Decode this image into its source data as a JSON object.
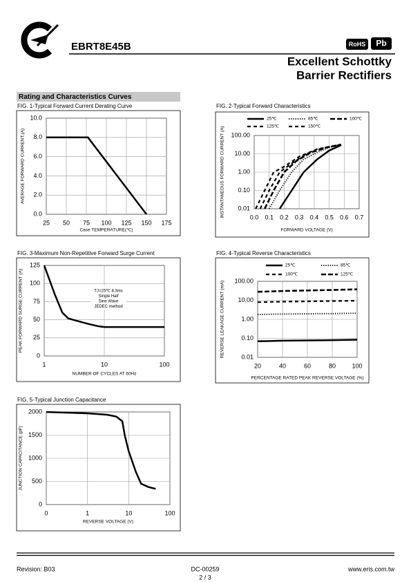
{
  "header": {
    "part_number": "EBRT8E45B",
    "rohs": "RoHS",
    "pb": "Pb",
    "title_line1": "Excellent Schottky",
    "title_line2": "Barrier Rectifiers",
    "section": "Rating and Characteristics Curves"
  },
  "chart_data": [
    {
      "type": "line",
      "title": "FIG. 1-Typical Forward Current Derating Curve",
      "x_label": "Case TEMPERATURE(℃)",
      "y_label": "AVERAGE FORWARD CURRENT,(A)",
      "x": [
        25,
        77,
        150
      ],
      "series": [
        {
          "color": "#000000",
          "style": "solid",
          "values": [
            8,
            8,
            0
          ]
        }
      ],
      "xlim": [
        25,
        175
      ],
      "xticks": [
        25,
        50,
        75,
        100,
        125,
        150,
        175
      ],
      "ylim": [
        0,
        10
      ],
      "yticks": [
        {
          "value": 0,
          "label": "0.0"
        },
        {
          "value": 2,
          "label": "2.0"
        },
        {
          "value": 4,
          "label": "4.0"
        },
        {
          "value": 6,
          "label": "6.0"
        },
        {
          "value": 8,
          "label": "8.0"
        },
        {
          "value": 10,
          "label": "10.0"
        }
      ],
      "grid": true
    },
    {
      "type": "line",
      "title": "FIG. 2-Typical Forward Characteristics",
      "x_label": "FORWARD VOLTAGE (V)",
      "y_label": "INSTANTANEOUS FORWARD CURRENT (A)",
      "y_scale": "log",
      "series": [
        {
          "name": "25℃",
          "color": "#000000",
          "style": "solid",
          "x": [
            0.17,
            0.25,
            0.33,
            0.42,
            0.5,
            0.58
          ],
          "values": [
            0.01,
            0.1,
            1,
            5,
            15,
            30
          ]
        },
        {
          "name": "85℃",
          "color": "#000000",
          "style": "dotted",
          "x": [
            0.1,
            0.17,
            0.25,
            0.33,
            0.42,
            0.5,
            0.58
          ],
          "values": [
            0.01,
            0.1,
            1,
            5,
            12,
            22,
            32
          ]
        },
        {
          "name": "100℃",
          "color": "#000000",
          "style": "long-dashed",
          "x": [
            0.07,
            0.13,
            0.2,
            0.28,
            0.38,
            0.48,
            0.58
          ],
          "values": [
            0.01,
            0.1,
            1,
            4,
            12,
            22,
            32
          ]
        },
        {
          "name": "125℃",
          "color": "#000000",
          "style": "dashed",
          "x": [
            0.04,
            0.1,
            0.17,
            0.25,
            0.35,
            0.45,
            0.58
          ],
          "values": [
            0.01,
            0.1,
            1,
            3,
            10,
            20,
            32
          ]
        },
        {
          "name": "150℃",
          "color": "#000000",
          "style": "dashed",
          "x": [
            0.01,
            0.07,
            0.13,
            0.2,
            0.3,
            0.42,
            0.58
          ],
          "values": [
            0.01,
            0.1,
            1,
            2,
            7,
            18,
            32
          ]
        }
      ],
      "xlim": [
        0,
        0.7
      ],
      "xticks": [
        {
          "value": 0,
          "label": "0.0"
        },
        0.1,
        0.2,
        0.3,
        0.4,
        0.5,
        0.6,
        0.7
      ],
      "ylim": [
        0.01,
        100
      ],
      "yticks": [
        0.01,
        {
          "value": 0.1,
          "label": "0.10"
        },
        {
          "value": 1,
          "label": "1.00"
        },
        {
          "value": 10,
          "label": "10.00"
        },
        {
          "value": 100,
          "label": "100.00"
        }
      ],
      "grid": true
    },
    {
      "type": "line",
      "title": "FIG. 3-Maximum Non-Repetitive Forward Surge Current",
      "x_label": "NUMBER OF CYCLES AT 60Hz",
      "y_label": "PEAK FORWARD SURGE CURRENT (A)",
      "x_scale": "log",
      "annotation": [
        "TJ=25℃ 8.3ms",
        "Single Half",
        "Sine Wave",
        "JEDEC method"
      ],
      "x": [
        1,
        1.5,
        2,
        2.5,
        3,
        5,
        8,
        10,
        20,
        100
      ],
      "series": [
        {
          "color": "#000000",
          "style": "solid",
          "values": [
            125,
            85,
            60,
            52,
            50,
            45,
            41,
            40,
            40,
            40
          ]
        }
      ],
      "xlim": [
        1,
        100
      ],
      "xticks": [
        1,
        10,
        100
      ],
      "ylim": [
        0,
        125
      ],
      "yticks": [
        0,
        25,
        50,
        75,
        100,
        125
      ],
      "grid": true
    },
    {
      "type": "line",
      "title": "FIG. 4-Typical Reverse Characteristics",
      "x_label": "PERCENTAGE RATED PEAK REVERSE VOLTAGE (%)",
      "y_label": "REVERSE LEAKAGE CURRENT (mA)",
      "y_scale": "log",
      "x": [
        20,
        40,
        60,
        80,
        100
      ],
      "series": [
        {
          "name": "25℃",
          "color": "#000000",
          "style": "solid",
          "values": [
            0.07,
            0.075,
            0.078,
            0.08,
            0.085
          ]
        },
        {
          "name": "85℃",
          "color": "#000000",
          "style": "dotted",
          "values": [
            1.8,
            1.9,
            1.95,
            2.0,
            2.1
          ]
        },
        {
          "name": "100℃",
          "color": "#000000",
          "style": "dashed",
          "values": [
            8,
            8.5,
            8.8,
            9.2,
            9.5
          ]
        },
        {
          "name": "125℃",
          "color": "#000000",
          "style": "long-dashed",
          "values": [
            28,
            31,
            33,
            35,
            38
          ]
        }
      ],
      "xlim": [
        20,
        100
      ],
      "xticks": [
        20,
        40,
        60,
        80,
        100
      ],
      "ylim": [
        0.01,
        100
      ],
      "yticks": [
        0.01,
        {
          "value": 0.1,
          "label": "0.10"
        },
        {
          "value": 1,
          "label": "1.00"
        },
        {
          "value": 10,
          "label": "10.00"
        },
        {
          "value": 100,
          "label": "100.00"
        }
      ],
      "grid": true
    },
    {
      "type": "line",
      "title": "FIG. 5-Typical Junction Capacitance",
      "x_label": "REVERSE VOLTAGE (V)",
      "y_label": "JUNCTION CAPACITANCE (pF)",
      "x_scale": "log",
      "x": [
        0.1,
        1,
        3,
        5,
        7,
        8,
        10,
        15,
        20,
        30,
        45
      ],
      "series": [
        {
          "color": "#000000",
          "style": "solid",
          "values": [
            2000,
            1970,
            1940,
            1900,
            1800,
            1500,
            1150,
            700,
            450,
            380,
            340
          ]
        }
      ],
      "xlim": [
        0.1,
        100
      ],
      "xticks": [
        {
          "value": 0.1,
          "label": "0"
        },
        1,
        10,
        100
      ],
      "ylim": [
        0,
        2000
      ],
      "yticks": [
        0,
        500,
        1000,
        1500,
        2000
      ],
      "grid": true
    }
  ],
  "footer": {
    "revision": "Revision: B03",
    "doc": "DC-00259",
    "page": "2 / 3",
    "web": "www.eris.com.tw"
  }
}
